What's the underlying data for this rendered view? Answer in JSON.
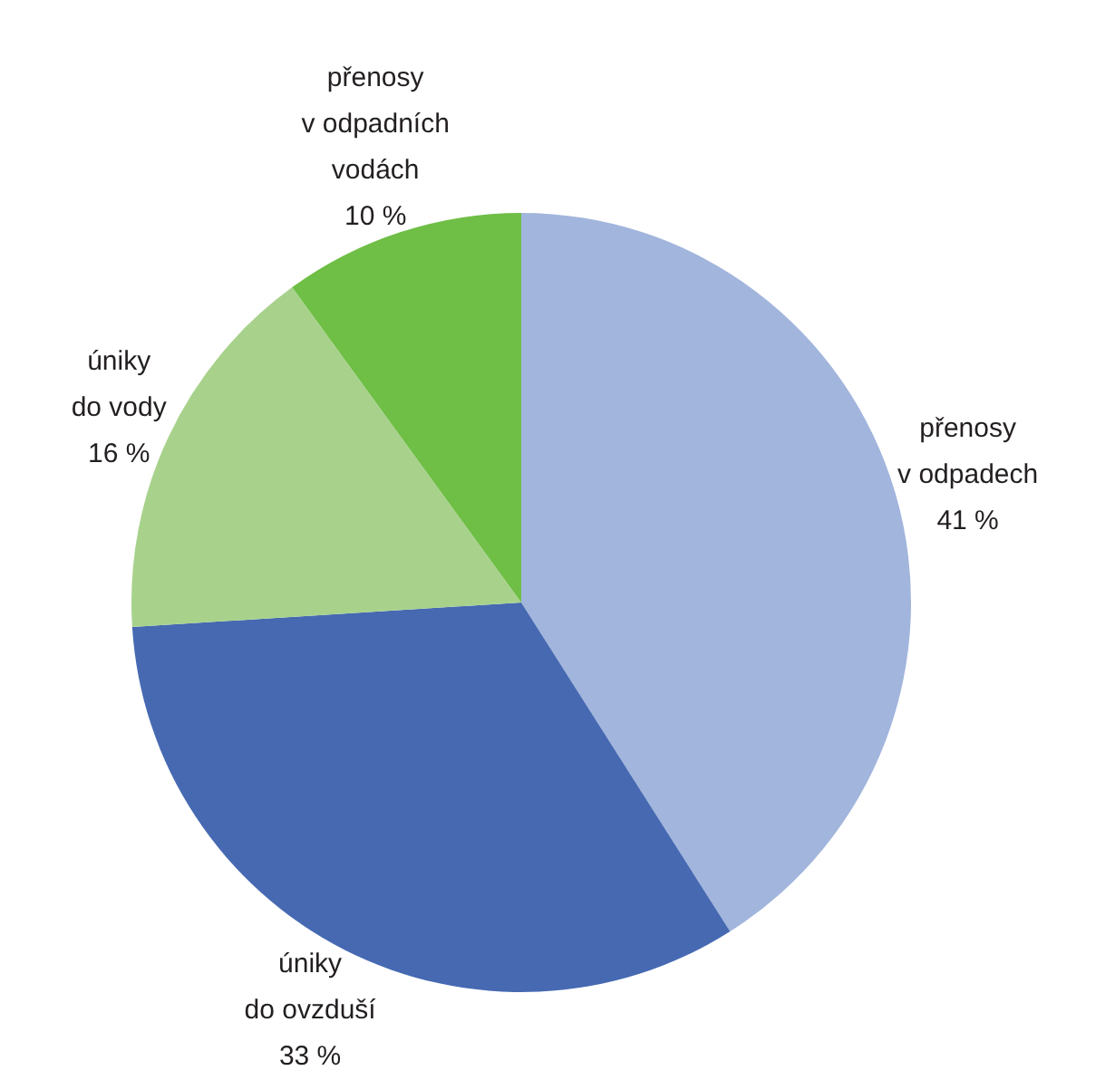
{
  "chart_data": {
    "type": "pie",
    "categories": [
      "přenosy\nv odpadech",
      "úniky\ndo ovzduší",
      "úniky\ndo vody",
      "přenosy\nv odpadních\nvodách"
    ],
    "values": [
      41,
      33,
      16,
      10
    ],
    "colors": [
      "#a2b5dc",
      "#4669b2",
      "#a8d28c",
      "#6fbe46"
    ],
    "value_labels": [
      "41 %",
      "33 %",
      "16 %",
      "10 %"
    ]
  }
}
